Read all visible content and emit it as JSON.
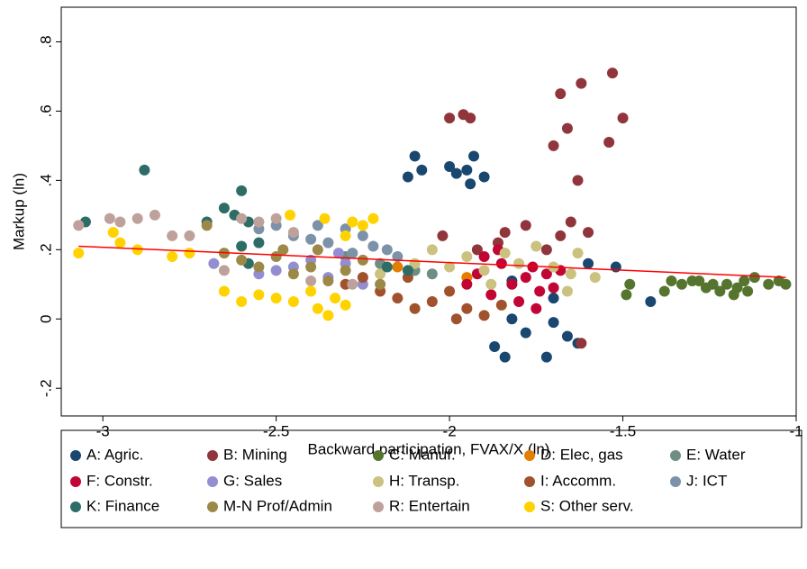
{
  "chart_data": {
    "type": "scatter",
    "x_label": "Backward participation, FVAX/X (ln)",
    "y_label": "Markup (ln)",
    "xlim": [
      -3.12,
      -1.0
    ],
    "xticks": [
      -3,
      -2.5,
      -2,
      -1.5,
      -1
    ],
    "ylim": [
      -0.28,
      0.9
    ],
    "yticks": [
      {
        "value": -0.2,
        "label": "-.2"
      },
      0,
      {
        "value": 0.2,
        "label": ".2"
      },
      {
        "value": 0.4,
        "label": ".4"
      },
      {
        "value": 0.6,
        "label": ".6"
      },
      {
        "value": 0.8,
        "label": ".8"
      }
    ],
    "legend": "bottom",
    "fit_line": {
      "color": "#ff0000",
      "x": [
        -3.07,
        -1.03
      ],
      "y": [
        0.21,
        0.12
      ]
    },
    "series": [
      {
        "name": "A: Agric.",
        "color": "#1a476f",
        "x": [
          -2.12,
          -2.1,
          -2.08,
          -2.0,
          -1.98,
          -1.95,
          -1.94,
          -1.93,
          -1.9,
          -1.87,
          -1.84,
          -1.82,
          -1.78,
          -1.72,
          -1.7,
          -1.66,
          -1.63,
          -1.6,
          -1.52,
          -1.42,
          -1.82,
          -1.7
        ],
        "values": [
          0.41,
          0.47,
          0.43,
          0.44,
          0.42,
          0.43,
          0.39,
          0.47,
          0.41,
          -0.08,
          -0.11,
          0.0,
          -0.04,
          -0.11,
          -0.01,
          -0.05,
          -0.07,
          0.16,
          0.15,
          0.05,
          0.11,
          0.06
        ]
      },
      {
        "name": "B: Mining",
        "color": "#90353b",
        "x": [
          -2.0,
          -1.96,
          -1.94,
          -1.68,
          -1.62,
          -1.66,
          -1.7,
          -1.53,
          -1.5,
          -1.54,
          -1.63,
          -2.02,
          -1.92,
          -1.84,
          -1.78,
          -1.68,
          -1.65,
          -1.6,
          -1.62,
          -1.86,
          -1.72
        ],
        "values": [
          0.58,
          0.59,
          0.58,
          0.65,
          0.68,
          0.55,
          0.5,
          0.71,
          0.58,
          0.51,
          0.4,
          0.24,
          0.2,
          0.25,
          0.27,
          0.24,
          0.28,
          0.25,
          -0.07,
          0.22,
          0.2
        ]
      },
      {
        "name": "C: Manuf.",
        "color": "#55752f",
        "x": [
          -1.49,
          -1.48,
          -1.38,
          -1.36,
          -1.33,
          -1.3,
          -1.26,
          -1.24,
          -1.22,
          -1.2,
          -1.17,
          -1.15,
          -1.14,
          -1.12,
          -1.08,
          -1.05,
          -1.03,
          -1.28,
          -1.18
        ],
        "values": [
          0.07,
          0.1,
          0.08,
          0.11,
          0.1,
          0.11,
          0.09,
          0.1,
          0.08,
          0.1,
          0.09,
          0.11,
          0.08,
          0.12,
          0.1,
          0.11,
          0.1,
          0.11,
          0.07
        ]
      },
      {
        "name": "D: Elec, gas",
        "color": "#e37e00",
        "x": [
          -2.15,
          -1.95
        ],
        "values": [
          0.15,
          0.12
        ]
      },
      {
        "name": "E: Water",
        "color": "#6e8e84",
        "x": [
          -2.2,
          -2.1,
          -2.3,
          -2.05
        ],
        "values": [
          0.16,
          0.14,
          0.18,
          0.13
        ]
      },
      {
        "name": "F: Constr.",
        "color": "#c10534",
        "x": [
          -1.92,
          -1.88,
          -1.85,
          -1.82,
          -1.8,
          -1.78,
          -1.76,
          -1.74,
          -1.72,
          -1.7,
          -1.68,
          -1.75,
          -1.86,
          -1.9,
          -1.95
        ],
        "values": [
          0.13,
          0.07,
          0.16,
          0.1,
          0.05,
          0.12,
          0.15,
          0.08,
          0.13,
          0.09,
          0.14,
          0.03,
          0.2,
          0.18,
          0.1
        ]
      },
      {
        "name": "G: Sales",
        "color": "#938dd2",
        "x": [
          -2.68,
          -2.55,
          -2.45,
          -2.35,
          -2.3,
          -2.25,
          -2.32,
          -2.4,
          -2.5
        ],
        "values": [
          0.16,
          0.13,
          0.15,
          0.12,
          0.16,
          0.1,
          0.19,
          0.17,
          0.14
        ]
      },
      {
        "name": "H: Transp.",
        "color": "#cac27e",
        "x": [
          -2.2,
          -2.1,
          -2.0,
          -1.95,
          -1.9,
          -1.84,
          -1.8,
          -1.75,
          -1.7,
          -1.65,
          -1.63,
          -1.58,
          -1.88,
          -2.05,
          -1.66
        ],
        "values": [
          0.13,
          0.16,
          0.15,
          0.18,
          0.14,
          0.19,
          0.16,
          0.21,
          0.15,
          0.13,
          0.19,
          0.12,
          0.1,
          0.2,
          0.08
        ]
      },
      {
        "name": "I: Accomm.",
        "color": "#a0522d",
        "x": [
          -2.3,
          -2.2,
          -2.15,
          -2.1,
          -2.05,
          -2.0,
          -1.95,
          -1.9,
          -1.85,
          -2.25,
          -2.12,
          -1.98
        ],
        "values": [
          0.1,
          0.08,
          0.06,
          0.03,
          0.05,
          0.08,
          0.03,
          0.01,
          0.04,
          0.12,
          0.12,
          0.0
        ]
      },
      {
        "name": "J: ICT",
        "color": "#7b92a8",
        "x": [
          -2.5,
          -2.45,
          -2.4,
          -2.35,
          -2.3,
          -2.25,
          -2.22,
          -2.18,
          -2.15,
          -2.28,
          -2.38,
          -2.55
        ],
        "values": [
          0.27,
          0.24,
          0.23,
          0.22,
          0.26,
          0.24,
          0.21,
          0.2,
          0.18,
          0.19,
          0.27,
          0.26
        ]
      },
      {
        "name": "K: Finance",
        "color": "#2d6d66",
        "x": [
          -2.88,
          -2.6,
          -2.65,
          -2.62,
          -2.58,
          -2.55,
          -2.7,
          -2.6,
          -3.05,
          -2.58,
          -2.18,
          -2.12
        ],
        "values": [
          0.43,
          0.37,
          0.32,
          0.3,
          0.28,
          0.22,
          0.28,
          0.21,
          0.28,
          0.16,
          0.15,
          0.14
        ]
      },
      {
        "name": "M-N Prof/Admin",
        "color": "#9c8847",
        "x": [
          -2.7,
          -2.65,
          -2.6,
          -2.55,
          -2.5,
          -2.45,
          -2.4,
          -2.35,
          -2.3,
          -2.25,
          -2.2,
          -2.48,
          -2.38
        ],
        "values": [
          0.27,
          0.19,
          0.17,
          0.15,
          0.18,
          0.13,
          0.15,
          0.11,
          0.14,
          0.17,
          0.1,
          0.2,
          0.2
        ]
      },
      {
        "name": "R: Entertain",
        "color": "#bfa19c",
        "x": [
          -3.07,
          -2.98,
          -2.95,
          -2.9,
          -2.85,
          -2.8,
          -2.75,
          -2.65,
          -2.6,
          -2.55,
          -2.5,
          -2.45,
          -2.4,
          -2.28
        ],
        "values": [
          0.27,
          0.29,
          0.28,
          0.29,
          0.3,
          0.24,
          0.24,
          0.14,
          0.29,
          0.28,
          0.29,
          0.25,
          0.11,
          0.1
        ]
      },
      {
        "name": "S: Other serv.",
        "color": "#ffd200",
        "x": [
          -3.07,
          -2.97,
          -2.95,
          -2.9,
          -2.8,
          -2.75,
          -2.65,
          -2.6,
          -2.55,
          -2.5,
          -2.45,
          -2.4,
          -2.38,
          -2.35,
          -2.33,
          -2.3,
          -2.46,
          -2.36,
          -2.28,
          -2.22,
          -2.3,
          -2.25
        ],
        "values": [
          0.19,
          0.25,
          0.22,
          0.2,
          0.18,
          0.19,
          0.08,
          0.05,
          0.07,
          0.06,
          0.05,
          0.08,
          0.03,
          0.01,
          0.06,
          0.04,
          0.3,
          0.29,
          0.28,
          0.29,
          0.24,
          0.27
        ]
      }
    ]
  }
}
